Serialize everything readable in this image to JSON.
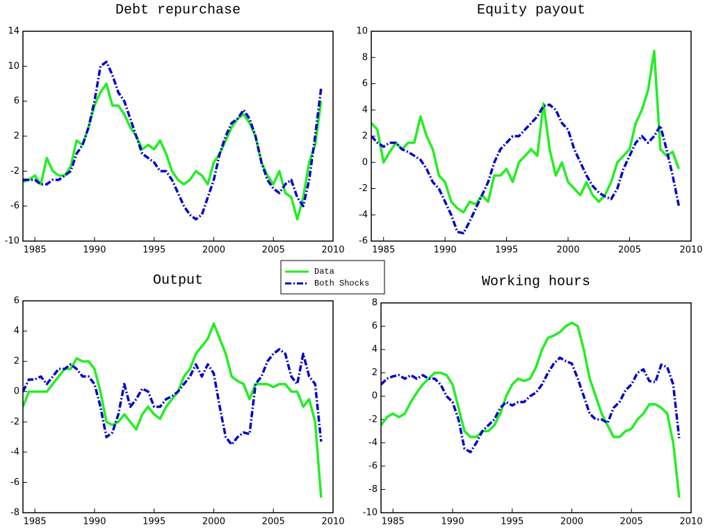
{
  "chart_data": [
    {
      "type": "line",
      "title": "Debt repurchase",
      "x": [
        1984,
        1984.5,
        1985,
        1985.5,
        1986,
        1986.5,
        1987,
        1987.5,
        1988,
        1988.5,
        1989,
        1989.5,
        1990,
        1990.5,
        1991,
        1991.5,
        1992,
        1992.5,
        1993,
        1993.5,
        1994,
        1994.5,
        1995,
        1995.5,
        1996,
        1996.5,
        1997,
        1997.5,
        1998,
        1998.5,
        1999,
        1999.5,
        2000,
        2000.5,
        2001,
        2001.5,
        2002,
        2002.5,
        2003,
        2003.5,
        2004,
        2004.5,
        2005,
        2005.5,
        2006,
        2006.5,
        2007,
        2007.5,
        2008,
        2008.5,
        2009
      ],
      "xlim": [
        1984,
        2010
      ],
      "xticks": [
        1985,
        1990,
        1995,
        2000,
        2005,
        2010
      ],
      "ylim": [
        -10,
        14
      ],
      "yticks": [
        -10,
        -6,
        -2,
        2,
        6,
        10,
        14
      ],
      "series": [
        {
          "name": "Data",
          "color": "#22ee22",
          "linestyle": "solid",
          "values": [
            -3.2,
            -3,
            -2.5,
            -3.5,
            -0.5,
            -2,
            -2.5,
            -2.5,
            -1.5,
            1.5,
            1,
            3,
            5.5,
            7,
            8,
            5.5,
            5.5,
            4.5,
            3,
            2,
            0.5,
            1,
            0.5,
            1.5,
            0,
            -2,
            -3,
            -3.5,
            -3,
            -2,
            -2.5,
            -3.5,
            -1,
            0,
            1.5,
            3,
            4,
            4.5,
            3.5,
            2,
            -1,
            -2.5,
            -3.5,
            -2,
            -4.5,
            -5,
            -7.5,
            -5,
            -1,
            1,
            6
          ]
        },
        {
          "name": "Both Shocks",
          "color": "#0000cc",
          "linestyle": "dashdot",
          "values": [
            -3,
            -3,
            -3,
            -3.5,
            -3.5,
            -3,
            -3,
            -2.5,
            -2,
            0,
            1,
            3,
            6,
            10,
            10.5,
            9,
            7,
            6,
            4,
            2,
            0,
            -0.5,
            -1,
            -2,
            -2,
            -3,
            -4.5,
            -6,
            -7,
            -7.5,
            -7,
            -5,
            -3,
            0,
            2,
            3.5,
            4,
            5,
            4,
            2,
            -1,
            -3,
            -4,
            -4.5,
            -3.5,
            -3,
            -5,
            -6,
            -3,
            2,
            7.5
          ]
        }
      ]
    },
    {
      "type": "line",
      "title": "Equity payout",
      "x": [
        1984,
        1984.5,
        1985,
        1985.5,
        1986,
        1986.5,
        1987,
        1987.5,
        1988,
        1988.5,
        1989,
        1989.5,
        1990,
        1990.5,
        1991,
        1991.5,
        1992,
        1992.5,
        1993,
        1993.5,
        1994,
        1994.5,
        1995,
        1995.5,
        1996,
        1996.5,
        1997,
        1997.5,
        1998,
        1998.5,
        1999,
        1999.5,
        2000,
        2000.5,
        2001,
        2001.5,
        2002,
        2002.5,
        2003,
        2003.5,
        2004,
        2004.5,
        2005,
        2005.5,
        2006,
        2006.5,
        2007,
        2007.5,
        2008,
        2008.5,
        2009
      ],
      "xlim": [
        1984,
        2010
      ],
      "xticks": [
        1985,
        1990,
        1995,
        2000,
        2005,
        2010
      ],
      "ylim": [
        -6,
        10
      ],
      "yticks": [
        -6,
        -4,
        -2,
        0,
        2,
        4,
        6,
        8,
        10
      ],
      "series": [
        {
          "color": "#22ee22",
          "linestyle": "solid",
          "values": [
            3,
            2.5,
            0,
            0.8,
            1.5,
            1,
            1.5,
            1.5,
            3.5,
            2,
            1,
            -1,
            -1.5,
            -3,
            -3.5,
            -3.8,
            -3,
            -3.2,
            -2.5,
            -3,
            -1,
            -1,
            -0.5,
            -1.5,
            0,
            0.5,
            1,
            0.5,
            4.5,
            1,
            -1,
            0,
            -1.5,
            -2,
            -2.5,
            -1.5,
            -2.5,
            -3,
            -2.5,
            -1.5,
            0,
            0.5,
            1,
            3,
            4,
            5.5,
            8.5,
            1,
            0.5,
            0.8,
            -0.5
          ]
        },
        {
          "color": "#0000cc",
          "linestyle": "dashdot",
          "values": [
            2,
            1.5,
            1.2,
            1.5,
            1.5,
            1,
            0.8,
            0.5,
            0.2,
            -0.5,
            -1.5,
            -2,
            -3,
            -4,
            -5.3,
            -5.4,
            -4.5,
            -3.5,
            -2.5,
            -1.5,
            0,
            1,
            1.5,
            2,
            2,
            2.5,
            3,
            3.5,
            4.3,
            4.4,
            4,
            3,
            2.5,
            1,
            0,
            -1,
            -1.8,
            -2.3,
            -2.6,
            -2.8,
            -2,
            -0.5,
            0.5,
            1.5,
            2,
            1.5,
            2,
            2.8,
            1,
            -1,
            -3.3
          ]
        }
      ]
    },
    {
      "type": "line",
      "title": "Output",
      "x": [
        1984,
        1984.5,
        1985,
        1985.5,
        1986,
        1986.5,
        1987,
        1987.5,
        1988,
        1988.5,
        1989,
        1989.5,
        1990,
        1990.5,
        1991,
        1991.5,
        1992,
        1992.5,
        1993,
        1993.5,
        1994,
        1994.5,
        1995,
        1995.5,
        1996,
        1996.5,
        1997,
        1997.5,
        1998,
        1998.5,
        1999,
        1999.5,
        2000,
        2000.5,
        2001,
        2001.5,
        2002,
        2002.5,
        2003,
        2003.5,
        2004,
        2004.5,
        2005,
        2005.5,
        2006,
        2006.5,
        2007,
        2007.5,
        2008,
        2008.5,
        2009
      ],
      "xlim": [
        1984,
        2010
      ],
      "xticks": [
        1985,
        1990,
        1995,
        2000,
        2005,
        2010
      ],
      "ylim": [
        -8,
        6
      ],
      "yticks": [
        -8,
        -6,
        -4,
        -2,
        0,
        2,
        4,
        6
      ],
      "series": [
        {
          "color": "#22ee22",
          "linestyle": "solid",
          "values": [
            -1,
            0,
            0,
            0,
            0,
            0.5,
            1,
            1.5,
            1.5,
            2.2,
            2,
            2,
            1.5,
            0,
            -2,
            -2.2,
            -2,
            -1.5,
            -2,
            -2.5,
            -1.5,
            -1,
            -1.5,
            -1.8,
            -1,
            -0.5,
            0,
            1,
            1.5,
            2.5,
            3,
            3.5,
            4.5,
            3.5,
            2.5,
            1,
            0.7,
            0.5,
            -0.5,
            0.5,
            0.5,
            0.5,
            0.3,
            0.5,
            0.5,
            0,
            0,
            -1,
            -0.5,
            -2,
            -7
          ]
        },
        {
          "color": "#0000cc",
          "linestyle": "dashdot",
          "values": [
            0,
            0.8,
            0.8,
            1,
            0.5,
            1,
            1.5,
            1.5,
            1.8,
            1.5,
            1,
            1,
            0.5,
            -1,
            -3,
            -2.7,
            -1.5,
            0.5,
            -1,
            -0.5,
            0.2,
            0,
            -1,
            -1,
            -0.5,
            -0.3,
            0,
            0.5,
            1,
            1.8,
            1,
            1.8,
            1.2,
            -1,
            -3,
            -3.5,
            -3,
            -2.7,
            -2.8,
            0.5,
            1,
            2,
            2.5,
            2.8,
            2.5,
            1,
            0.5,
            2.5,
            1,
            0.5,
            -3.3
          ]
        }
      ]
    },
    {
      "type": "line",
      "title": "Working hours",
      "x": [
        1984,
        1984.5,
        1985,
        1985.5,
        1986,
        1986.5,
        1987,
        1987.5,
        1988,
        1988.5,
        1989,
        1989.5,
        1990,
        1990.5,
        1991,
        1991.5,
        1992,
        1992.5,
        1993,
        1993.5,
        1994,
        1994.5,
        1995,
        1995.5,
        1996,
        1996.5,
        1997,
        1997.5,
        1998,
        1998.5,
        1999,
        1999.5,
        2000,
        2000.5,
        2001,
        2001.5,
        2002,
        2002.5,
        2003,
        2003.5,
        2004,
        2004.5,
        2005,
        2005.5,
        2006,
        2006.5,
        2007,
        2007.5,
        2008,
        2008.5,
        2009
      ],
      "xlim": [
        1984,
        2010
      ],
      "xticks": [
        1985,
        1990,
        1995,
        2000,
        2005,
        2010
      ],
      "ylim": [
        -10,
        8
      ],
      "yticks": [
        -10,
        -8,
        -6,
        -4,
        -2,
        0,
        2,
        4,
        6,
        8
      ],
      "series": [
        {
          "color": "#22ee22",
          "linestyle": "solid",
          "values": [
            -2.5,
            -1.8,
            -1.5,
            -1.8,
            -1.5,
            -0.5,
            0.3,
            1,
            1.5,
            2,
            2,
            1.8,
            1,
            -1,
            -3,
            -3.5,
            -3.5,
            -3,
            -3,
            -2.5,
            -1.5,
            0,
            1,
            1.5,
            1.3,
            1.5,
            2.5,
            4,
            5,
            5.2,
            5.5,
            6,
            6.3,
            6,
            4,
            1.5,
            0,
            -1.5,
            -2.5,
            -3.5,
            -3.5,
            -3,
            -2.8,
            -2,
            -1.5,
            -0.7,
            -0.7,
            -1,
            -1.5,
            -4,
            -8.7
          ]
        },
        {
          "color": "#0000cc",
          "linestyle": "dashdot",
          "values": [
            1,
            1.5,
            1.7,
            1.8,
            1.5,
            1.8,
            1.5,
            1.8,
            1.5,
            1.5,
            1,
            0,
            -0.5,
            -2,
            -4.5,
            -4.8,
            -4,
            -3,
            -2.5,
            -2,
            -1,
            -0.5,
            -0.8,
            -0.5,
            -0.5,
            0,
            0.3,
            1,
            2,
            2.8,
            3.3,
            3,
            2.8,
            1.5,
            0,
            -1.5,
            -2,
            -2,
            -2.3,
            -1,
            -0.5,
            0.5,
            1,
            2,
            2.3,
            1.3,
            1.2,
            2.7,
            2.5,
            1,
            -3.6
          ]
        }
      ]
    }
  ]
}
